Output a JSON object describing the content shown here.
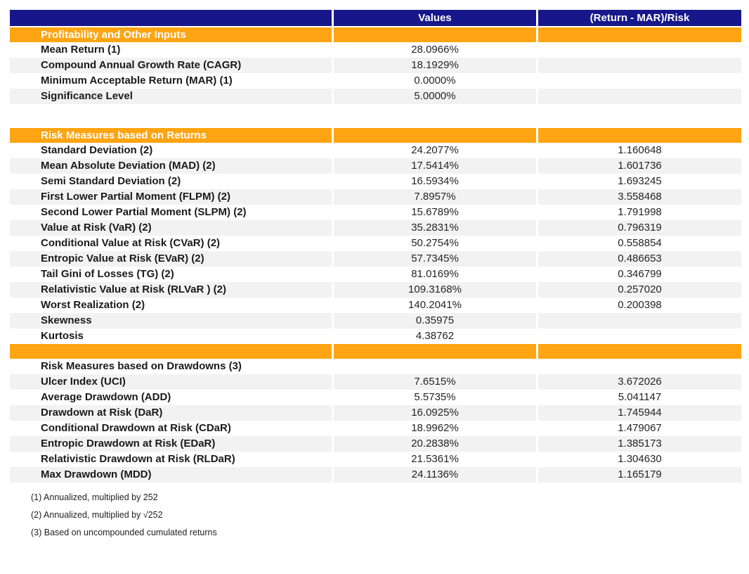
{
  "chart_data": {
    "type": "table",
    "columns": [
      "",
      "Values",
      "(Return - MAR)/Risk"
    ],
    "colors": {
      "header_bg": "#17178B",
      "section_bg": "#FFA412",
      "row_alt_bg": "#F2F2F2",
      "header_text": "#FFFFFF",
      "body_text": "#1A1A1A"
    },
    "rows": [
      {
        "type": "section",
        "label": "Profitability and Other Inputs",
        "value": "",
        "risk": ""
      },
      {
        "type": "data",
        "shade": "white",
        "label": "Mean Return (1)",
        "value": "28.0966%",
        "risk": ""
      },
      {
        "type": "data",
        "shade": "gray",
        "label": "Compound Annual Growth Rate (CAGR)",
        "value": "18.1929%",
        "risk": ""
      },
      {
        "type": "data",
        "shade": "white",
        "label": "Minimum Acceptable Return (MAR) (1)",
        "value": "0.0000%",
        "risk": ""
      },
      {
        "type": "data",
        "shade": "gray",
        "label": "Significance Level",
        "value": "5.0000%",
        "risk": ""
      },
      {
        "type": "blank"
      },
      {
        "type": "section",
        "label": "Risk Measures based on Returns",
        "value": "",
        "risk": ""
      },
      {
        "type": "data",
        "shade": "white",
        "label": "Standard Deviation (2)",
        "value": "24.2077%",
        "risk": "1.160648"
      },
      {
        "type": "data",
        "shade": "gray",
        "label": "Mean Absolute Deviation (MAD) (2)",
        "value": "17.5414%",
        "risk": "1.601736"
      },
      {
        "type": "data",
        "shade": "white",
        "label": "Semi Standard Deviation (2)",
        "value": "16.5934%",
        "risk": "1.693245"
      },
      {
        "type": "data",
        "shade": "gray",
        "label": "First Lower Partial Moment (FLPM) (2)",
        "value": "7.8957%",
        "risk": "3.558468"
      },
      {
        "type": "data",
        "shade": "white",
        "label": "Second Lower Partial Moment (SLPM) (2)",
        "value": "15.6789%",
        "risk": "1.791998"
      },
      {
        "type": "data",
        "shade": "gray",
        "label": "Value at Risk (VaR) (2)",
        "value": "35.2831%",
        "risk": "0.796319"
      },
      {
        "type": "data",
        "shade": "white",
        "label": "Conditional Value at Risk (CVaR) (2)",
        "value": "50.2754%",
        "risk": "0.558854"
      },
      {
        "type": "data",
        "shade": "gray",
        "label": "Entropic Value at Risk (EVaR) (2)",
        "value": "57.7345%",
        "risk": "0.486653"
      },
      {
        "type": "data",
        "shade": "white",
        "label": "Tail Gini of Losses (TG) (2)",
        "value": "81.0169%",
        "risk": "0.346799"
      },
      {
        "type": "data",
        "shade": "gray",
        "label": "Relativistic Value at Risk (RLVaR ) (2)",
        "value": "109.3168%",
        "risk": "0.257020"
      },
      {
        "type": "data",
        "shade": "white",
        "label": "Worst Realization (2)",
        "value": "140.2041%",
        "risk": "0.200398"
      },
      {
        "type": "data",
        "shade": "gray",
        "label": "Skewness",
        "value": "0.35975",
        "risk": ""
      },
      {
        "type": "data",
        "shade": "white",
        "label": "Kurtosis",
        "value": "4.38762",
        "risk": ""
      },
      {
        "type": "section",
        "label": "",
        "value": "",
        "risk": ""
      },
      {
        "type": "data",
        "shade": "white",
        "label": "Risk Measures based on Drawdowns (3)",
        "value": "",
        "risk": ""
      },
      {
        "type": "data",
        "shade": "gray",
        "label": "Ulcer Index (UCI)",
        "value": "7.6515%",
        "risk": "3.672026"
      },
      {
        "type": "data",
        "shade": "white",
        "label": "Average Drawdown (ADD)",
        "value": "5.5735%",
        "risk": "5.041147"
      },
      {
        "type": "data",
        "shade": "gray",
        "label": "Drawdown at Risk (DaR)",
        "value": "16.0925%",
        "risk": "1.745944"
      },
      {
        "type": "data",
        "shade": "white",
        "label": "Conditional Drawdown at Risk (CDaR)",
        "value": "18.9962%",
        "risk": "1.479067"
      },
      {
        "type": "data",
        "shade": "gray",
        "label": "Entropic Drawdown at Risk (EDaR)",
        "value": "20.2838%",
        "risk": "1.385173"
      },
      {
        "type": "data",
        "shade": "white",
        "label": "Relativistic Drawdown at Risk (RLDaR)",
        "value": "21.5361%",
        "risk": "1.304630"
      },
      {
        "type": "data",
        "shade": "gray",
        "label": "Max Drawdown (MDD)",
        "value": "24.1136%",
        "risk": "1.165179"
      }
    ],
    "footnotes": [
      "(1) Annualized, multiplied by 252",
      "(2) Annualized, multiplied by √252",
      "(3) Based on uncompounded cumulated returns"
    ]
  }
}
